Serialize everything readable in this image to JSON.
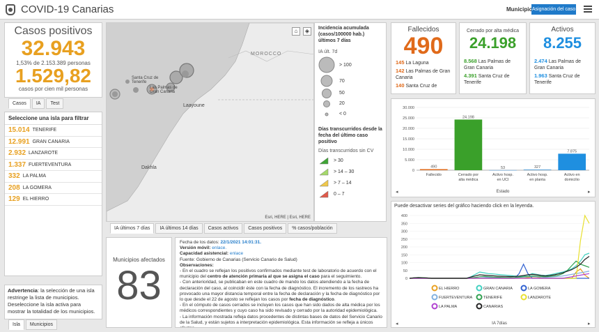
{
  "header": {
    "title": "COVID-19 Canarias",
    "municipio_label": "Municipio",
    "municipio_button": "Asignación del caso"
  },
  "casos": {
    "label": "Casos positivos",
    "total": "32.943",
    "pct_line": "1,53% de 2.153.389 personas",
    "rate": "1.529,82",
    "rate_label": "casos por cien mil personas",
    "tabs": [
      "Casos",
      "IA",
      "Test"
    ]
  },
  "islands": {
    "header": "Seleccione una isla para filtrar",
    "rows": [
      {
        "n": "15.014",
        "name": "TENERIFE"
      },
      {
        "n": "12.991",
        "name": "GRAN CANARIA"
      },
      {
        "n": "2.932",
        "name": "LANZAROTE"
      },
      {
        "n": "1.337",
        "name": "FUERTEVENTURA"
      },
      {
        "n": "332",
        "name": "LA PALMA"
      },
      {
        "n": "208",
        "name": "LA GOMERA"
      },
      {
        "n": "129",
        "name": "EL HIERRO"
      }
    ]
  },
  "advertencia": {
    "bold": "Advertencia",
    "text": ": la selección de una isla restringe la lista de municipios. Deseleccione la isla activa para mostrar la totalidad de los municipios.",
    "tabs": [
      "Isla",
      "Municipios"
    ]
  },
  "map": {
    "labels": {
      "morocco": "MOROCCO",
      "laayoune": "Laayoune",
      "dakhla": "Dakhla",
      "santa_cruz": "Santa Cruz de Tenerife",
      "las_palmas": "Las Palmas de Gran Canaria"
    },
    "attribution": "Esri, HERE | Esri, HERE",
    "tabs": [
      "IA últimos 7 días",
      "IA últimos 14 días",
      "Casos activos",
      "Casos positivos",
      "% casos/población"
    ]
  },
  "legend": {
    "title1": "Incidencia acumulada (casos/100000 hab.) últimos 7 días",
    "sub1": "IA últ. 7d",
    "sizes": [
      "> 100",
      "70",
      "50",
      "20",
      "< 0"
    ],
    "title2": "Días transcurridos desde la fecha del último caso positivo",
    "sub2": "Días transcurridos sin CV",
    "classes": [
      {
        "label": "> 30",
        "color": "#3fa535"
      },
      {
        "label": "> 14 – 30",
        "color": "#a5d96a"
      },
      {
        "label": "> 7 – 14",
        "color": "#f0c84a"
      },
      {
        "label": "0 – 7",
        "color": "#e05a4a"
      }
    ]
  },
  "municipios": {
    "label": "Municipios afectados",
    "value": "83"
  },
  "info": {
    "fecha_label": "Fecha de los datos:",
    "fecha": "22/1/2021 14:01:31.",
    "movil_label": "Versión móvil:",
    "movil": "enlace.",
    "capacidad_label": "Capacidad asistencial:",
    "capacidad": "enlace",
    "fuente": "Fuente: Gobierno de Canarias (Servicio Canario de Salud)",
    "obs_label": "Observaciones:",
    "obs1a": "- En el cuadro se reflejan los positivos confirmados mediante test de laboratorio de acuerdo con el municipio del ",
    "obs1b": "centro de atención primaria al que se asigna el caso",
    "obs1c": " para el seguimiento.",
    "obs2a": "- Con anterioridad, se publicaban en este cuadro de mando los datos atendiendo a la fecha de declaración del caso, al coincidir éste con la fecha de diagnóstico. El incremento de los rastreos ha provocado una mayor distancia temporal entre la fecha de declaración y la fecha de diagnóstico por lo que desde el 22 de agosto se reflejan los casos por ",
    "obs2b": "fecha de diagnóstico",
    "obs2c": ".",
    "obs3": "- En el cómputo de casos cerrados se incluyen los casos que han sido dados de alta médica por los médicos correspondientes y cuyo caso ha sido revisado y cerrado por la autoridad epidemiológica.",
    "obs4": "- La información mostrada refleja datos procedentes de distintas bases de datos del Servicio Canario de la Salud, y están sujetos a interpretación epidemiológica. Esta información se refleja a únicos efectos"
  },
  "fallecidos": {
    "label": "Fallecidos",
    "value": "490",
    "items": [
      {
        "n": "145",
        "name": "La Laguna"
      },
      {
        "n": "142",
        "name": "Las Palmas de Gran Canaria"
      },
      {
        "n": "140",
        "name": "Santa Cruz de"
      }
    ]
  },
  "cerrado": {
    "label": "Cerrado por alta médica",
    "value": "24.198",
    "items": [
      {
        "n": "8.568",
        "name": "Las Palmas de Gran Canaria"
      },
      {
        "n": "4.391",
        "name": "Santa Cruz de Tenerife"
      }
    ]
  },
  "activos": {
    "label": "Activos",
    "value": "8.255",
    "items": [
      {
        "n": "2.474",
        "name": "Las Palmas de Gran Canaria"
      },
      {
        "n": "1.963",
        "name": "Santa Cruz de Tenerife"
      }
    ]
  },
  "chart_data": [
    {
      "type": "bar",
      "categories": [
        "Fallecido",
        "Cerrado por alta médica",
        "Activo hosp. en UCI",
        "Activo hosp. en planta",
        "Activo en domicilio"
      ],
      "values": [
        490,
        24198,
        53,
        327,
        7875
      ],
      "labels": [
        "490",
        "24.198",
        "53",
        "327",
        "7.875"
      ],
      "colors": [
        "#e06a1a",
        "#3aa02a",
        "#5aa0d8",
        "#5aa0d8",
        "#1f8fe0"
      ],
      "xlabel": "Estado",
      "ylabel": "",
      "ylim": [
        0,
        30000
      ],
      "yticks": [
        0,
        5000,
        10000,
        15000,
        20000,
        25000,
        30000
      ],
      "ytick_labels": [
        "0",
        "5.000",
        "10.000",
        "15.000",
        "20.000",
        "25.000",
        "30.000"
      ]
    },
    {
      "type": "line",
      "title": "Puede desactivar series del gráfico haciendo click en la leyenda.",
      "xlabel": "IA 7días",
      "ylim": [
        0,
        400
      ],
      "yticks": [
        0,
        50,
        100,
        150,
        200,
        250,
        300,
        350,
        400
      ],
      "series": [
        {
          "name": "EL HIERRO",
          "color": "#e8a020",
          "values": [
            0,
            0,
            0,
            0,
            0,
            0,
            0,
            0,
            0,
            0,
            0,
            0,
            0,
            0,
            0,
            0,
            0,
            0,
            0,
            0,
            0,
            0,
            0,
            0,
            0,
            0,
            0,
            5,
            10,
            8,
            3,
            0,
            0,
            0,
            0,
            0,
            0,
            0,
            40,
            60,
            20,
            0
          ]
        },
        {
          "name": "GRAN CANARIA",
          "color": "#40d0c0",
          "values": [
            0,
            2,
            3,
            2,
            1,
            0,
            0,
            0,
            0,
            0,
            0,
            0,
            0,
            0,
            10,
            25,
            40,
            35,
            30,
            28,
            25,
            22,
            20,
            18,
            15,
            12,
            15,
            20,
            30,
            25,
            20,
            18,
            22,
            28,
            35,
            40,
            50,
            60,
            80,
            110,
            150,
            160
          ]
        },
        {
          "name": "LA GOMERA",
          "color": "#3060d0",
          "values": [
            0,
            0,
            0,
            0,
            0,
            0,
            0,
            0,
            0,
            0,
            0,
            0,
            0,
            0,
            0,
            0,
            0,
            0,
            0,
            0,
            0,
            0,
            0,
            0,
            0,
            30,
            90,
            30,
            0,
            0,
            0,
            0,
            0,
            0,
            0,
            0,
            0,
            0,
            0,
            0,
            0,
            0
          ]
        },
        {
          "name": "FUERTEVENTURA",
          "color": "#80b0e0",
          "values": [
            0,
            0,
            0,
            0,
            0,
            0,
            0,
            0,
            0,
            0,
            0,
            0,
            0,
            0,
            0,
            5,
            10,
            8,
            5,
            4,
            3,
            2,
            2,
            3,
            4,
            6,
            8,
            10,
            12,
            10,
            8,
            6,
            8,
            10,
            12,
            15,
            20,
            25,
            30,
            35,
            40,
            45
          ]
        },
        {
          "name": "TENERIFE",
          "color": "#30a050",
          "values": [
            0,
            3,
            5,
            4,
            2,
            0,
            0,
            0,
            0,
            0,
            0,
            0,
            0,
            0,
            3,
            6,
            10,
            12,
            10,
            8,
            7,
            6,
            5,
            5,
            6,
            8,
            10,
            12,
            15,
            14,
            12,
            10,
            12,
            15,
            20,
            30,
            50,
            80,
            110,
            90,
            80,
            70
          ]
        },
        {
          "name": "LANZAROTE",
          "color": "#e8e030",
          "values": [
            0,
            0,
            0,
            0,
            0,
            0,
            0,
            0,
            0,
            0,
            0,
            0,
            0,
            0,
            0,
            0,
            0,
            0,
            0,
            0,
            0,
            0,
            0,
            0,
            0,
            0,
            0,
            0,
            0,
            0,
            0,
            0,
            0,
            0,
            0,
            0,
            0,
            0,
            0,
            240,
            400,
            350
          ]
        },
        {
          "name": "LA PALMA",
          "color": "#b040d0",
          "values": [
            0,
            0,
            0,
            0,
            0,
            0,
            0,
            0,
            0,
            0,
            0,
            0,
            0,
            0,
            0,
            0,
            0,
            0,
            0,
            0,
            0,
            0,
            0,
            0,
            0,
            0,
            0,
            0,
            0,
            0,
            0,
            0,
            0,
            0,
            0,
            0,
            5,
            10,
            15,
            20,
            25,
            30
          ]
        },
        {
          "name": "CANARIAS",
          "color": "#222222",
          "values": [
            0,
            3,
            4,
            3,
            2,
            0,
            0,
            0,
            0,
            0,
            0,
            0,
            0,
            0,
            8,
            15,
            22,
            20,
            18,
            16,
            14,
            13,
            12,
            11,
            12,
            14,
            18,
            22,
            25,
            22,
            18,
            15,
            18,
            22,
            28,
            35,
            45,
            55,
            70,
            90,
            120,
            140
          ]
        }
      ]
    }
  ]
}
